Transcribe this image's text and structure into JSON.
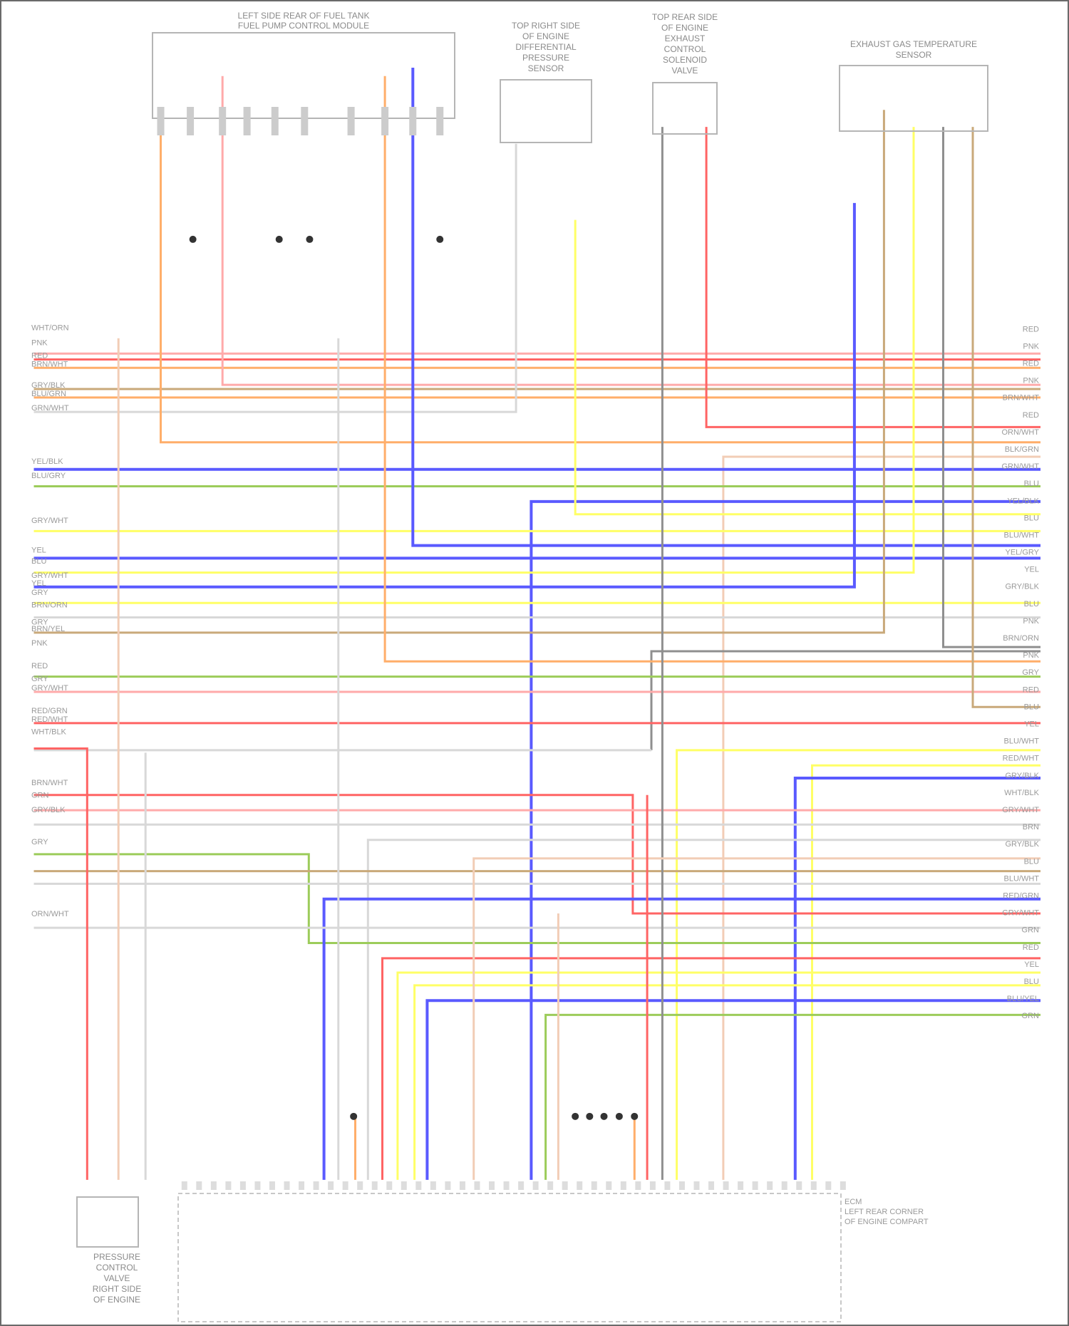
{
  "components": {
    "fuel_pump_module": {
      "title_line1": "LEFT SIDE REAR OF FUEL TANK",
      "title_line2": "FUEL PUMP CONTROL MODULE"
    },
    "diff_pressure_sensor": {
      "title_lines": [
        "TOP RIGHT SIDE",
        "OF ENGINE",
        "DIFFERENTIAL",
        "PRESSURE",
        "SENSOR"
      ]
    },
    "control_valve": {
      "title_lines": [
        "TOP REAR SIDE",
        "OF ENGINE",
        "EXHAUST",
        "CONTROL",
        "SOLENOID",
        "VALVE"
      ]
    },
    "exhaust_temp_sensor": {
      "title_lines": [
        "EXHAUST GAS TEMPERATURE",
        "SENSOR"
      ]
    },
    "pressure_control_valve": {
      "title_lines": [
        "PRESSURE",
        "CONTROL",
        "VALVE",
        "RIGHT SIDE",
        "OF ENGINE"
      ]
    },
    "ecm": {
      "title_lines": [
        "ECM",
        "LEFT REAR CORNER",
        "OF ENGINE COMPART"
      ]
    }
  },
  "left_pin_labels": [
    "WHT/ORN",
    "PNK",
    "RED",
    "BRN/WHT",
    "GRY/BLK",
    "BLU/GRN",
    "GRN/WHT",
    "YEL/BLK",
    "BLU/GRY",
    "GRY/WHT",
    "YEL",
    "BLU",
    "GRY/WHT",
    "YEL",
    "GRY",
    "BRN/ORN",
    "GRY",
    "BRN/YEL",
    "PNK",
    "RED",
    "GRY",
    "GRY/WHT",
    "RED/GRN",
    "RED/WHT",
    "WHT/BLK",
    "BRN/WHT",
    "GRN",
    "GRY/BLK",
    "GRY",
    "ORN/WHT"
  ],
  "right_pin_labels": [
    "RED",
    "PNK",
    "RED",
    "PNK",
    "BRN/WHT",
    "RED",
    "ORN/WHT",
    "BLK/GRN",
    "GRN/WHT",
    "BLU",
    "YEL/BLK",
    "BLU",
    "BLU/WHT",
    "YEL/GRY",
    "YEL",
    "GRY/BLK",
    "BLU",
    "PNK",
    "BRN/ORN",
    "PNK",
    "GRY",
    "RED",
    "BLU",
    "YEL",
    "BLU/WHT",
    "RED/WHT",
    "GRY/BLK",
    "WHT/BLK",
    "GRY/WHT",
    "BRN",
    "GRY/BLK",
    "BLU",
    "BLU/WHT",
    "RED/GRN",
    "GRY/WHT",
    "GRN",
    "RED",
    "YEL",
    "BLU",
    "BLU/YEL",
    "GRN"
  ],
  "wire_colors": {
    "red": "#ff6464",
    "pink": "#ffaaaa",
    "orange": "#ffae6a",
    "blue": "#5a5aff",
    "yellow": "#ffff66",
    "green": "#9ccc5a",
    "tan": "#c9a97a",
    "gray": "#8f8f8f",
    "light": "#f2cdb6",
    "lightgray": "#d8d8d8"
  }
}
